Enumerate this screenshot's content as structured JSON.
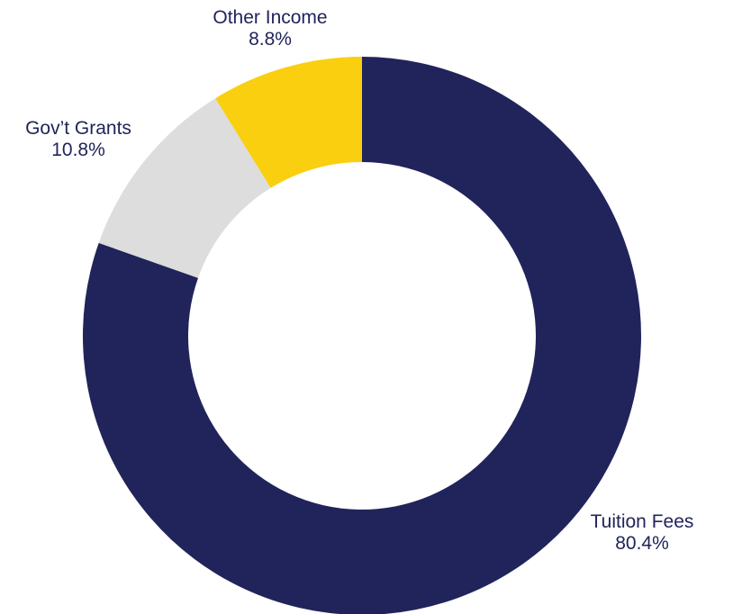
{
  "chart_data": {
    "type": "pie",
    "style": "donut",
    "categories": [
      "Tuition Fees",
      "Gov’t Grants",
      "Other Income"
    ],
    "values": [
      80.4,
      10.8,
      8.8
    ],
    "value_labels": [
      "80.4%",
      "10.8%",
      "8.8%"
    ],
    "colors": [
      "#21245a",
      "#dcdddc",
      "#f9cf0f"
    ],
    "start": "12 o'clock",
    "direction": "clockwise",
    "legend": "none"
  }
}
